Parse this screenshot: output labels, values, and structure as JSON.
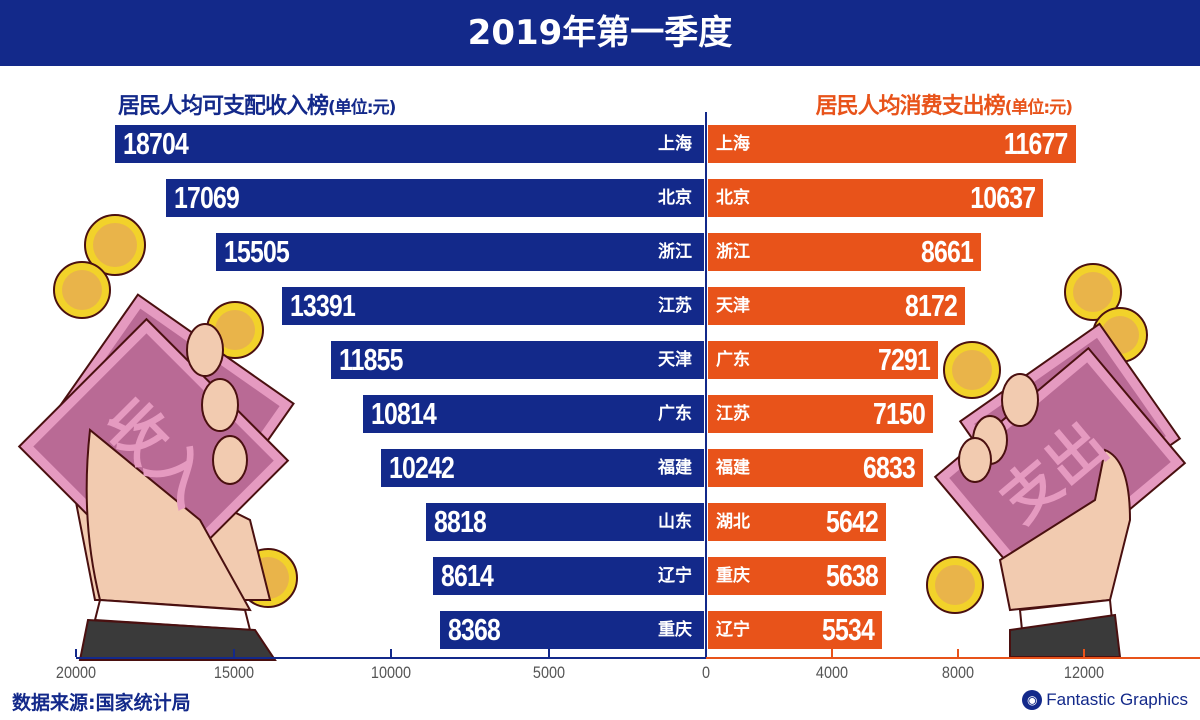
{
  "header": {
    "title": "2019年第一季度"
  },
  "illustrations": {
    "left_bill_text": "收入",
    "right_bill_text": "支出",
    "coin_symbol": "¥"
  },
  "chart_data": [
    {
      "type": "bar",
      "orientation": "horizontal",
      "direction": "right-to-left",
      "title": "居民人均可支配收入榜",
      "unit": "(单位:元)",
      "categories": [
        "上海",
        "北京",
        "浙江",
        "江苏",
        "天津",
        "广东",
        "福建",
        "山东",
        "辽宁",
        "重庆"
      ],
      "values": [
        18704,
        17069,
        15505,
        13391,
        11855,
        10814,
        10242,
        8818,
        8614,
        8368
      ],
      "xlim": [
        0,
        20000
      ],
      "ticks": [
        20000,
        15000,
        10000,
        5000,
        0
      ],
      "color": "#13298a"
    },
    {
      "type": "bar",
      "orientation": "horizontal",
      "direction": "left-to-right",
      "title": "居民人均消费支出榜",
      "unit": "(单位:元)",
      "categories": [
        "上海",
        "北京",
        "浙江",
        "天津",
        "广东",
        "江苏",
        "福建",
        "湖北",
        "重庆",
        "辽宁"
      ],
      "values": [
        11677,
        10637,
        8661,
        8172,
        7291,
        7150,
        6833,
        5642,
        5638,
        5534
      ],
      "xlim": [
        0,
        15500
      ],
      "ticks": [
        4000,
        8000,
        12000
      ],
      "color": "#e8531a"
    }
  ],
  "footer": {
    "source": "数据来源:国家统计局",
    "brand": "Fantastic Graphics",
    "brand_icon": "owl-logo-icon"
  }
}
